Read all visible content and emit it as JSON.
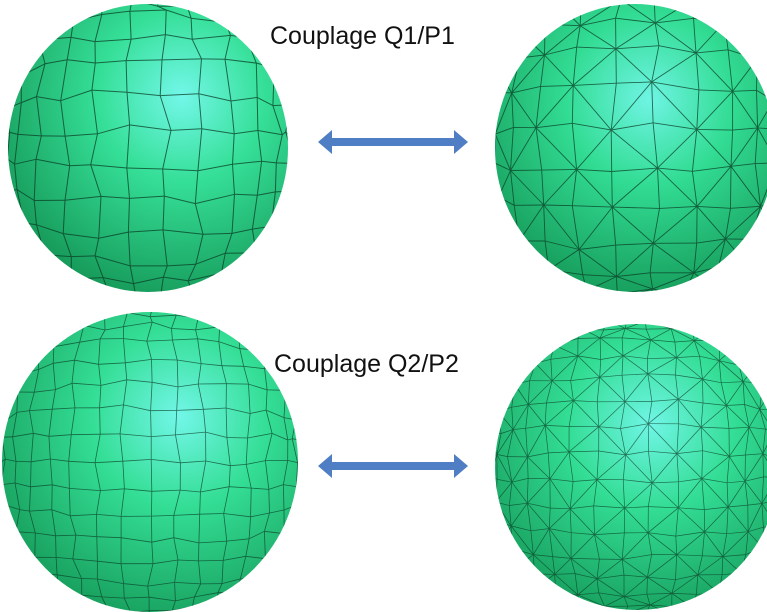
{
  "rows": [
    {
      "title": "Couplage Q1/P1"
    },
    {
      "title": "Couplage Q2/P2"
    }
  ],
  "colors": {
    "sphere_base": "#2fdc8e",
    "sphere_highlight": "#6ff5e6",
    "sphere_shadow": "#0c8a4a",
    "mesh_line": "#0b3d25",
    "arrow": "#4f7ec4"
  }
}
